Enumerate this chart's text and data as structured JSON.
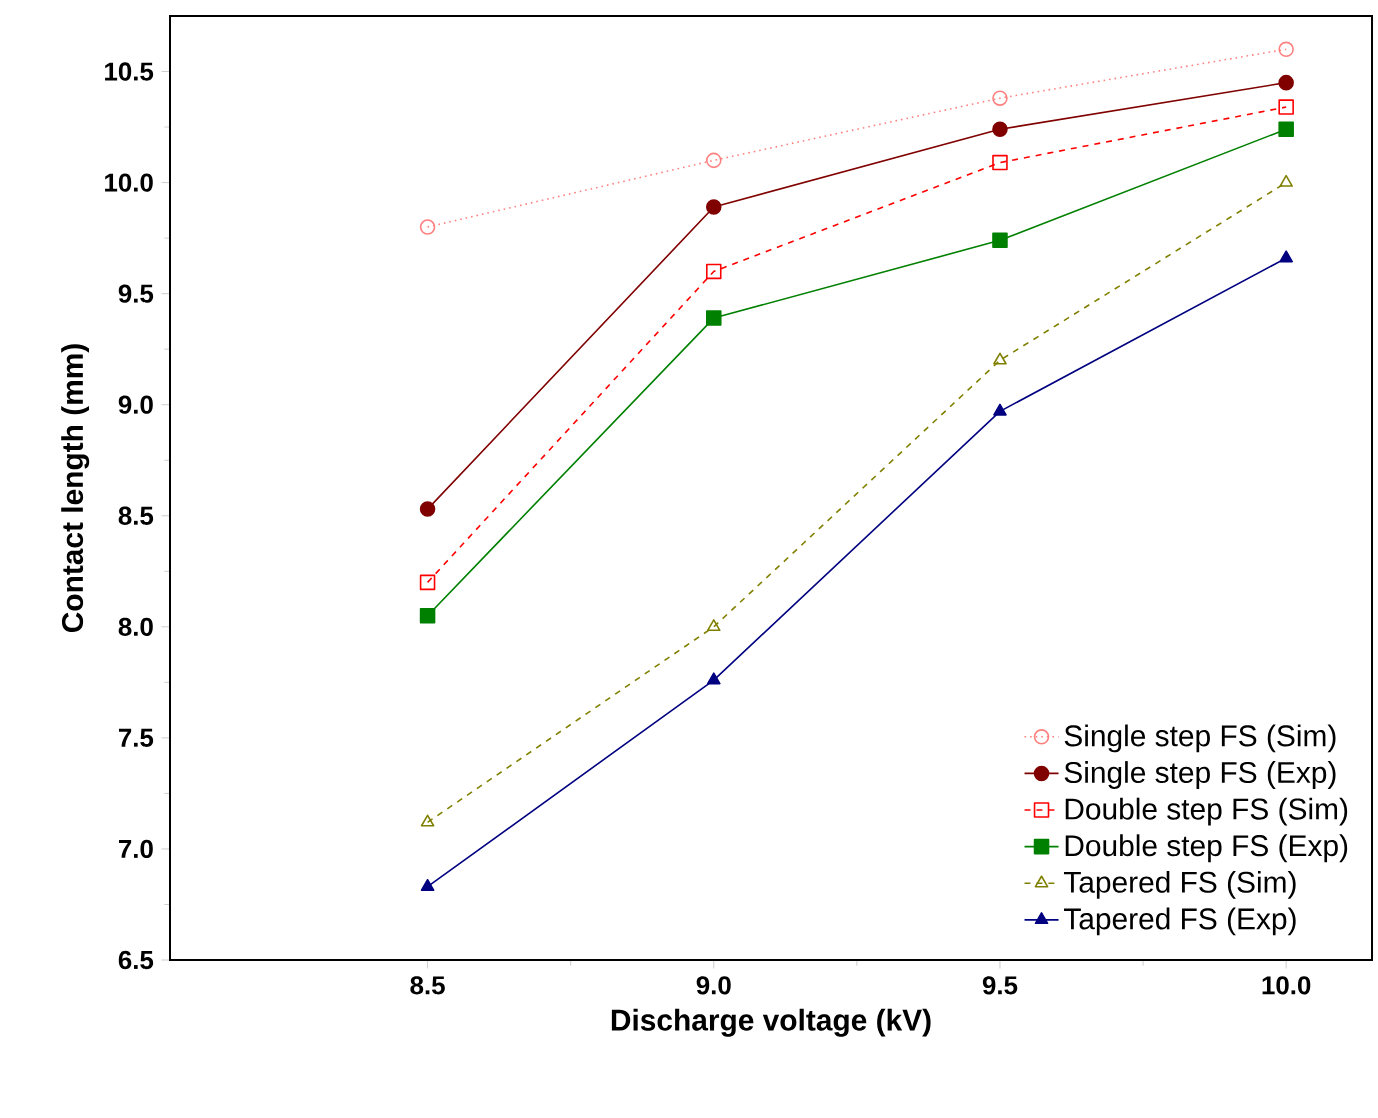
{
  "chart_data": {
    "type": "line",
    "xlabel": "Discharge voltage (kV)",
    "ylabel": "Contact length (mm)",
    "x": [
      8.5,
      9.0,
      9.5,
      10.0
    ],
    "xlim": [
      8.05,
      10.15
    ],
    "ylim": [
      6.5,
      10.75
    ],
    "xticks": [
      {
        "value": 8.5,
        "label": "8.5"
      },
      {
        "value": 9.0,
        "label": "9.0"
      },
      {
        "value": 9.5,
        "label": "9.5"
      },
      {
        "value": 10.0,
        "label": "10.0"
      }
    ],
    "yticks": [
      {
        "value": 6.5,
        "label": "6.5"
      },
      {
        "value": 7.0,
        "label": "7.0"
      },
      {
        "value": 7.5,
        "label": "7.5"
      },
      {
        "value": 8.0,
        "label": "8.0"
      },
      {
        "value": 8.5,
        "label": "8.5"
      },
      {
        "value": 9.0,
        "label": "9.0"
      },
      {
        "value": 9.5,
        "label": "9.5"
      },
      {
        "value": 10.0,
        "label": "10.0"
      },
      {
        "value": 10.5,
        "label": "10.5"
      }
    ],
    "grid": false,
    "legend": "bottom right",
    "series": [
      {
        "name": "Single step FS (Sim)",
        "color": "#ff8080",
        "marker": "circle",
        "line_style": "dotted",
        "values": [
          9.8,
          10.1,
          10.38,
          10.6
        ]
      },
      {
        "name": "Single step FS (Exp)",
        "color": "#800000",
        "marker": "circle",
        "line_style": "solid",
        "values": [
          8.53,
          9.89,
          10.24,
          10.45
        ]
      },
      {
        "name": "Double step FS (Sim)",
        "color": "#ff0000",
        "marker": "square",
        "line_style": "dashed",
        "values": [
          8.2,
          9.6,
          10.09,
          10.34
        ]
      },
      {
        "name": "Double step FS (Exp)",
        "color": "#008000",
        "marker": "square",
        "line_style": "solid",
        "values": [
          8.05,
          9.39,
          9.74,
          10.24
        ]
      },
      {
        "name": "Tapered FS (Sim)",
        "color": "#808000",
        "marker": "triangle",
        "line_style": "dashed",
        "values": [
          7.12,
          8.0,
          9.2,
          10.0
        ]
      },
      {
        "name": "Tapered FS (Exp)",
        "color": "#000080",
        "marker": "triangle",
        "line_style": "solid",
        "values": [
          6.83,
          7.76,
          8.97,
          9.66
        ]
      }
    ]
  }
}
